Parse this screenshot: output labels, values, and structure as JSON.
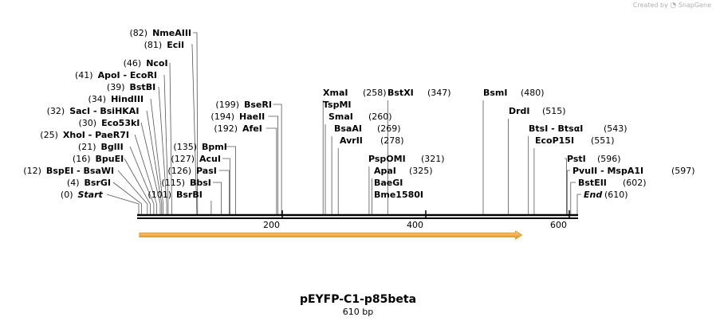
{
  "header": {
    "watermark_prefix": "Created by",
    "watermark_brand": "SnapGene"
  },
  "sequence": {
    "name": "pEYFP-C1-p85beta",
    "length_label": "610 bp",
    "length": 610
  },
  "ticks": [
    {
      "value": 200,
      "label": "200"
    },
    {
      "value": 400,
      "label": "400"
    },
    {
      "value": 600,
      "label": "600"
    }
  ],
  "feature": {
    "start": 1,
    "end": 534,
    "color": "#f2b04d",
    "border": "#e19a2b",
    "edge": "#8b5a00"
  },
  "colors": {
    "backbone": "#000000",
    "leader": "#555555",
    "text": "#000000"
  },
  "left_sites": [
    {
      "pos": "(82)",
      "name": "NmeAIII",
      "site": 82,
      "kind": "enzyme"
    },
    {
      "pos": "(81)",
      "name": "EciI",
      "site": 81,
      "kind": "enzyme"
    },
    {
      "pos": "(46)",
      "name": "NcoI",
      "site": 46,
      "kind": "enzyme"
    },
    {
      "pos": "(41)",
      "name": "ApoI - EcoRI",
      "site": 41,
      "kind": "enzyme"
    },
    {
      "pos": "(39)",
      "name": "BstBI",
      "site": 39,
      "kind": "enzyme"
    },
    {
      "pos": "(34)",
      "name": "HindIII",
      "site": 34,
      "kind": "enzyme"
    },
    {
      "pos": "(32)",
      "name": "SacI - BsiHKAI",
      "site": 32,
      "kind": "enzyme"
    },
    {
      "pos": "(30)",
      "name": "Eco53kI",
      "site": 30,
      "kind": "enzyme"
    },
    {
      "pos": "(25)",
      "name": "XhoI - PaeR7I",
      "site": 25,
      "kind": "enzyme"
    },
    {
      "pos": "(21)",
      "name": "BglII",
      "site": 21,
      "kind": "enzyme"
    },
    {
      "pos": "(16)",
      "name": "BpuEI",
      "site": 16,
      "kind": "enzyme"
    },
    {
      "pos": "(12)",
      "name": "BspEI - BsaWI",
      "site": 12,
      "kind": "enzyme"
    },
    {
      "pos": "(4)",
      "name": "BsrGI",
      "site": 4,
      "kind": "enzyme"
    },
    {
      "pos": "(0)",
      "name": "Start",
      "site": 0,
      "kind": "marker"
    }
  ],
  "inner_sites": [
    {
      "pos": "(135)",
      "name": "BpmI",
      "site": 135
    },
    {
      "pos": "(127)",
      "name": "AcuI",
      "site": 127
    },
    {
      "pos": "(126)",
      "name": "PasI",
      "site": 126
    },
    {
      "pos": "(115)",
      "name": "BbsI",
      "site": 115
    },
    {
      "pos": "(101)",
      "name": "BsrBI",
      "site": 101
    }
  ],
  "mid_left_sites": [
    {
      "pos": "(199)",
      "name": "BseRI",
      "site": 199
    },
    {
      "pos": "(194)",
      "name": "HaeII",
      "site": 194
    },
    {
      "pos": "(192)",
      "name": "AfeI",
      "site": 192
    }
  ],
  "mid_sites": [
    {
      "name": "XmaI",
      "pos": "(258)",
      "site": 258
    },
    {
      "name": "BstXI",
      "pos": "(347)",
      "site": 347
    },
    {
      "name": "TspMI",
      "pos": "",
      "site": 258
    },
    {
      "name": "SmaI",
      "pos": "(260)",
      "site": 260
    },
    {
      "name": "BsaAI",
      "pos": "(269)",
      "site": 269
    },
    {
      "name": "AvrII",
      "pos": "(278)",
      "site": 278
    },
    {
      "name": "PspOMI",
      "pos": "(321)",
      "site": 321
    },
    {
      "name": "ApaI",
      "pos": "(325)",
      "site": 325
    },
    {
      "name": "BaeGI",
      "pos": "",
      "site": 325
    },
    {
      "name": "Bme1580I",
      "pos": "",
      "site": 325
    }
  ],
  "right_sites": [
    {
      "name": "BsmI",
      "pos": "(480)",
      "site": 480
    },
    {
      "name": "DrdI",
      "pos": "(515)",
      "site": 515
    },
    {
      "name": "BtsI - BtsαI",
      "pos": "(543)",
      "site": 543
    },
    {
      "name": "EcoP15I",
      "pos": "(551)",
      "site": 551
    },
    {
      "name": "PstI",
      "pos": "(596)",
      "site": 596
    },
    {
      "name": "PvuII - MspA1I",
      "pos": "(597)",
      "site": 597
    },
    {
      "name": "BstEII",
      "pos": "(602)",
      "site": 602
    },
    {
      "name": "End",
      "pos": "(610)",
      "site": 610,
      "kind": "marker"
    }
  ]
}
